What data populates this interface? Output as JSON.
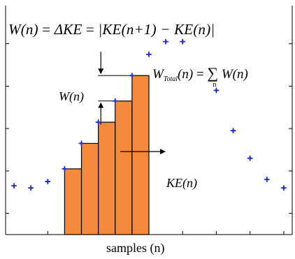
{
  "chart_data": {
    "type": "bar",
    "xlabel": "samples  (n)",
    "formula_main": {
      "lhs": "W(n)",
      "eq1": " = ",
      "mid": "ΔKE",
      "eq2": " = ",
      "rhs": "|KE(n+1) − KE(n)|"
    },
    "formula_total": {
      "lhs_base": "W",
      "lhs_sub": "Total",
      "lhs_arg": "(n)",
      "eq": " = ",
      "sum": "∑",
      "sum_index": "n",
      "rhs": " W(n)"
    },
    "label_w": "W(n)",
    "label_ke": "KE(n)",
    "points": [
      {
        "x": 1,
        "y": 1.3
      },
      {
        "x": 2,
        "y": 1.2
      },
      {
        "x": 3,
        "y": 1.5
      },
      {
        "x": 4,
        "y": 2.1
      },
      {
        "x": 5,
        "y": 3.3
      },
      {
        "x": 6,
        "y": 4.3
      },
      {
        "x": 7,
        "y": 5.3
      },
      {
        "x": 8,
        "y": 6.5
      },
      {
        "x": 9,
        "y": 7.5
      },
      {
        "x": 10,
        "y": 8.1
      },
      {
        "x": 11,
        "y": 8.1
      },
      {
        "x": 13,
        "y": 5.8
      },
      {
        "x": 14,
        "y": 3.9
      },
      {
        "x": 15,
        "y": 2.6
      },
      {
        "x": 16,
        "y": 1.6
      },
      {
        "x": 17,
        "y": 1.2
      }
    ],
    "bars": [
      {
        "x": 4,
        "value": 2.1
      },
      {
        "x": 5,
        "value": 3.3
      },
      {
        "x": 6,
        "value": 4.3
      },
      {
        "x": 7,
        "value": 5.3
      },
      {
        "x": 8,
        "value": 6.5
      }
    ],
    "xlim": [
      0.5,
      17.5
    ],
    "ylim": [
      -1,
      9.8
    ],
    "colors": {
      "bar_fill": "#f58a3c",
      "bar_edge": "#000000",
      "marker": "#1f2fd6"
    }
  }
}
